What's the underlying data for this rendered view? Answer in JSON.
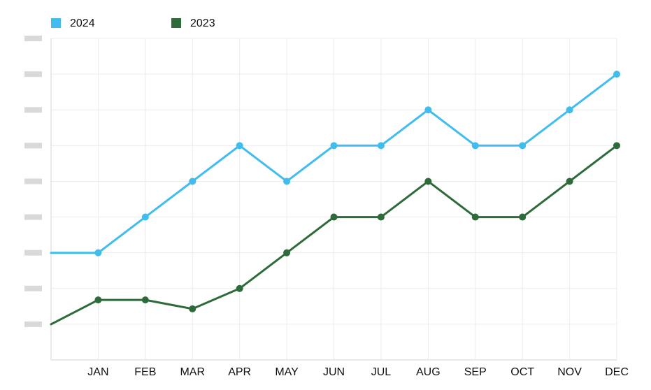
{
  "chart_data": {
    "type": "line",
    "categories": [
      "",
      "JAN",
      "FEB",
      "MAR",
      "APR",
      "MAY",
      "JUN",
      "JUL",
      "AUG",
      "SEP",
      "OCT",
      "NOV",
      "DEC"
    ],
    "series": [
      {
        "name": "2024",
        "color": "#40BDEE",
        "values": [
          3,
          3,
          4,
          5,
          6,
          5,
          6,
          6,
          7,
          6,
          6,
          7,
          8
        ]
      },
      {
        "name": "2023",
        "color": "#2E6B3A",
        "values": [
          1,
          1.68,
          1.68,
          1.43,
          2,
          3,
          4,
          4,
          5,
          4,
          4,
          5,
          6
        ]
      }
    ],
    "ylim": [
      0,
      9
    ],
    "y_ticks": [
      1,
      2,
      3,
      4,
      5,
      6,
      7,
      8,
      9
    ],
    "y_tick_labels_visible": false,
    "grid": true,
    "legend_position": "top-left",
    "title": "",
    "xlabel": "",
    "ylabel": ""
  }
}
